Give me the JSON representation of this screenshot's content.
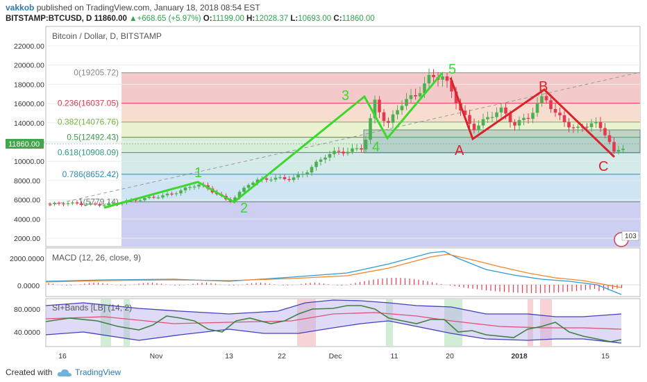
{
  "header": {
    "author": "vakkob",
    "published": "published on TradingView.com, January 18, 2018 08:54 EST",
    "symbol": "BITSTAMP:BTCUSD, D",
    "last": "11860.00",
    "change": "+668.65 (+5.97%)",
    "o_label": "O:",
    "o": "11199.00",
    "h_label": "H:",
    "h": "12028.37",
    "l_label": "L:",
    "l": "10693.00",
    "c_label": "C:",
    "c": "11860.00"
  },
  "footer": {
    "created": "Created with",
    "brand": "TradingView"
  },
  "colors": {
    "up": "#4caf50",
    "down": "#e53950",
    "wave_green": "#3bd82c",
    "wave_red": "#d8232a",
    "macd": "#2e9ad8",
    "signal": "#f5842a",
    "rsi": "#3f7f3f"
  },
  "chart_data": [
    {
      "type": "candlestick",
      "title": "Bitcoin / Dollar, D, BITSTAMP",
      "ylim": [
        1500,
        23000
      ],
      "y_ticks": [
        "22000.00",
        "20000.00",
        "18000.00",
        "16000.00",
        "14000.00",
        "12000.00",
        "10000.00",
        "8000.00",
        "6000.00",
        "4000.00",
        "2000.00"
      ],
      "x_ticks": [
        "16",
        "Nov",
        "13",
        "22",
        "Dec",
        "11",
        "20",
        "2018",
        "15"
      ],
      "price_label": "11860.00",
      "fib_levels": [
        {
          "label": "0(19205.72)",
          "value": 19205.72,
          "color": "#888888"
        },
        {
          "label": "0.236(16037.05)",
          "value": 16037.05,
          "color": "#e53950"
        },
        {
          "label": "0.382(14076.76)",
          "value": 14076.76,
          "color": "#7bb33d"
        },
        {
          "label": "0.5(12492.43)",
          "value": 12492.43,
          "color": "#3a9a4a"
        },
        {
          "label": "0.618(10908.09)",
          "value": 10908.09,
          "color": "#2a9a7a"
        },
        {
          "label": "0.786(8652.42)",
          "value": 8652.42,
          "color": "#2a8ab8"
        },
        {
          "label": "1(5779.14)",
          "value": 5779.14,
          "color": "#777777"
        }
      ],
      "wave_labels": [
        "1",
        "2",
        "3",
        "4",
        "5",
        "A",
        "B",
        "C"
      ],
      "candles_ohlc_sample": [
        [
          5600,
          5750,
          5500,
          5700
        ],
        [
          13500,
          14200,
          10500,
          11199
        ],
        [
          11199,
          12028.37,
          10693,
          11860
        ]
      ],
      "badge": "103"
    },
    {
      "type": "line",
      "title": "MACD (12, 26, close, 9)",
      "y_ticks": [
        "2000.0000",
        "0.0000"
      ],
      "series": [
        {
          "name": "MACD"
        },
        {
          "name": "Signal"
        }
      ]
    },
    {
      "type": "line",
      "title": "SI+Bands [LB] (14, 2)",
      "y_ticks": [
        "80.0000",
        "40.0000"
      ]
    }
  ]
}
